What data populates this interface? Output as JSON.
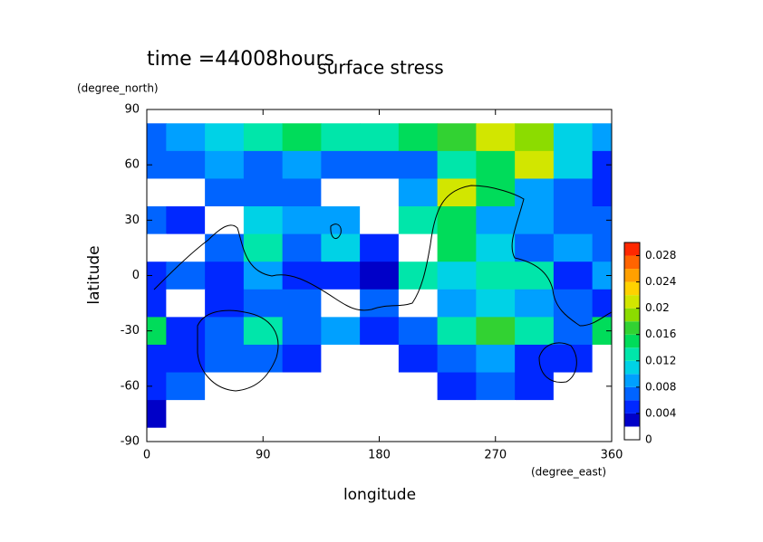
{
  "chart_data": {
    "type": "contour",
    "title": "surface stress",
    "subtitle": "time =44008hours",
    "x_label": "longitude",
    "x_unit": "(degree_east)",
    "y_label": "latitude",
    "y_unit": "(degree_north)",
    "x": [
      0,
      30,
      60,
      90,
      120,
      150,
      180,
      210,
      240,
      270,
      300,
      330,
      360
    ],
    "y": [
      90,
      75,
      60,
      45,
      30,
      15,
      0,
      -15,
      -30,
      -45,
      -60,
      -75,
      -90
    ],
    "values": [
      [
        0,
        0,
        0,
        0,
        0,
        0,
        0,
        0,
        0,
        0,
        0,
        0,
        0
      ],
      [
        0.006,
        0.008,
        0.01,
        0.012,
        0.014,
        0.012,
        0.012,
        0.014,
        0.016,
        0.02,
        0.018,
        0.01,
        0.008
      ],
      [
        0.006,
        0.006,
        0.008,
        0.006,
        0.008,
        0.006,
        0.006,
        0.006,
        0.012,
        0.014,
        0.02,
        0.01,
        0.004
      ],
      [
        0,
        0,
        0.006,
        0.006,
        0.006,
        0,
        0,
        0.008,
        0.02,
        0.014,
        0.008,
        0.006,
        0.004
      ],
      [
        0.006,
        0.004,
        0,
        0.01,
        0.008,
        0.008,
        0,
        0.012,
        0.014,
        0.008,
        0.008,
        0.006,
        0.006
      ],
      [
        0,
        0,
        0.006,
        0.012,
        0.006,
        0.01,
        0.004,
        0,
        0.014,
        0.01,
        0.006,
        0.008,
        0.006
      ],
      [
        0.004,
        0.006,
        0.004,
        0.008,
        0.004,
        0.004,
        0.002,
        0.012,
        0.01,
        0.012,
        0.012,
        0.004,
        0.008
      ],
      [
        0.004,
        0,
        0.004,
        0.006,
        0.006,
        0,
        0.006,
        0,
        0.008,
        0.01,
        0.008,
        0.006,
        0.004
      ],
      [
        0.014,
        0.004,
        0.006,
        0.012,
        0.006,
        0.008,
        0.004,
        0.006,
        0.012,
        0.016,
        0.012,
        0.006,
        0.014
      ],
      [
        0.004,
        0.004,
        0.006,
        0.006,
        0.004,
        0,
        0,
        0.004,
        0.006,
        0.008,
        0.004,
        0.004,
        0
      ],
      [
        0.004,
        0.006,
        0,
        0,
        0,
        0,
        0,
        0,
        0.004,
        0.006,
        0.004,
        0,
        0
      ],
      [
        0.002,
        0,
        0,
        0,
        0,
        0,
        0,
        0,
        0,
        0,
        0,
        0,
        0
      ],
      [
        0,
        0,
        0,
        0,
        0,
        0,
        0,
        0,
        0,
        0,
        0,
        0,
        0
      ]
    ],
    "xlim": [
      0,
      360
    ],
    "xticks": [
      0,
      90,
      180,
      270,
      360
    ],
    "ylim": [
      -90,
      90
    ],
    "yticks": [
      -90,
      -60,
      -30,
      0,
      30,
      60,
      90
    ],
    "levels": [
      0,
      0.002,
      0.004,
      0.006,
      0.008,
      0.01,
      0.012,
      0.014,
      0.016,
      0.018,
      0.02,
      0.022,
      0.024,
      0.026,
      0.028,
      0.03
    ],
    "colors": [
      "#ffffff",
      "#0000c8",
      "#0028ff",
      "#0064ff",
      "#00a0ff",
      "#00d2e6",
      "#00e6aa",
      "#00dc5a",
      "#32d232",
      "#8cdc00",
      "#d2e600",
      "#ffd200",
      "#ffa000",
      "#ff6400",
      "#ff2800"
    ],
    "colorbar_lim": [
      0,
      0.03
    ],
    "colorbar_ticks": [
      0,
      0.004,
      0.008,
      0.012,
      0.016,
      0.02,
      0.024,
      0.028
    ]
  }
}
